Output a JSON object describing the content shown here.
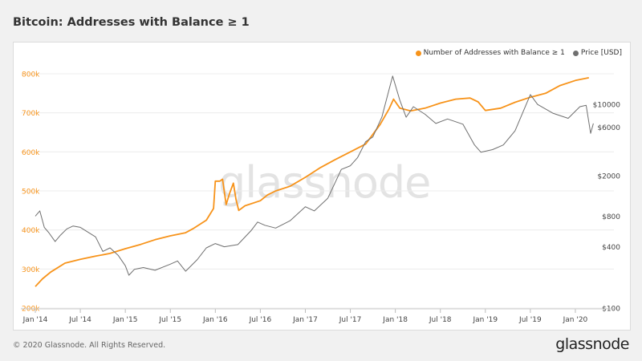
{
  "title": "Bitcoin: Addresses with Balance ≥ 1",
  "footer": "© 2020 Glassnode. All Rights Reserved.",
  "brand": "glassnode",
  "watermark": "glassnode",
  "chart_data": {
    "type": "line",
    "title": "Bitcoin: Addresses with Balance ≥ 1",
    "legend_position": "top-right",
    "grid": "horizontal",
    "x_ticks": [
      "Jan '14",
      "Jul '14",
      "Jan '15",
      "Jul '15",
      "Jan '16",
      "Jul '16",
      "Jan '17",
      "Jul '17",
      "Jan '18",
      "Jul '18",
      "Jan '19",
      "Jul '19",
      "Jan '20"
    ],
    "x_range": [
      2014.0,
      2020.25
    ],
    "y_left": {
      "ticks": [
        "200k",
        "300k",
        "400k",
        "500k",
        "600k",
        "700k",
        "800k"
      ],
      "range": [
        200000,
        800000
      ],
      "color": "#f7931a"
    },
    "y_right": {
      "scale": "log",
      "ticks": [
        "$100",
        "$400",
        "$800",
        "$2000",
        "$6000",
        "$10000"
      ],
      "range": [
        100,
        20000
      ],
      "color": "#555555"
    },
    "series": [
      {
        "name": "Number of Addresses with Balance ≥ 1",
        "color": "#f7931a",
        "axis": "left",
        "points": [
          [
            2014.0,
            255000
          ],
          [
            2014.08,
            275000
          ],
          [
            2014.17,
            292000
          ],
          [
            2014.33,
            315000
          ],
          [
            2014.5,
            325000
          ],
          [
            2014.67,
            333000
          ],
          [
            2014.83,
            340000
          ],
          [
            2015.0,
            352000
          ],
          [
            2015.17,
            363000
          ],
          [
            2015.33,
            375000
          ],
          [
            2015.5,
            385000
          ],
          [
            2015.67,
            393000
          ],
          [
            2015.75,
            403000
          ],
          [
            2015.9,
            425000
          ],
          [
            2015.98,
            455000
          ],
          [
            2016.0,
            525000
          ],
          [
            2016.05,
            525000
          ],
          [
            2016.08,
            530000
          ],
          [
            2016.12,
            465000
          ],
          [
            2016.16,
            495000
          ],
          [
            2016.2,
            520000
          ],
          [
            2016.23,
            478000
          ],
          [
            2016.26,
            450000
          ],
          [
            2016.33,
            462000
          ],
          [
            2016.5,
            475000
          ],
          [
            2016.58,
            490000
          ],
          [
            2016.67,
            500000
          ],
          [
            2016.83,
            512000
          ],
          [
            2017.0,
            535000
          ],
          [
            2017.17,
            560000
          ],
          [
            2017.33,
            580000
          ],
          [
            2017.5,
            600000
          ],
          [
            2017.67,
            620000
          ],
          [
            2017.83,
            670000
          ],
          [
            2017.93,
            710000
          ],
          [
            2017.98,
            735000
          ],
          [
            2018.05,
            712000
          ],
          [
            2018.17,
            705000
          ],
          [
            2018.33,
            712000
          ],
          [
            2018.5,
            725000
          ],
          [
            2018.67,
            735000
          ],
          [
            2018.83,
            738000
          ],
          [
            2018.92,
            728000
          ],
          [
            2019.0,
            706000
          ],
          [
            2019.17,
            712000
          ],
          [
            2019.33,
            727000
          ],
          [
            2019.5,
            740000
          ],
          [
            2019.67,
            750000
          ],
          [
            2019.83,
            770000
          ],
          [
            2020.0,
            783000
          ],
          [
            2020.15,
            790000
          ]
        ]
      },
      {
        "name": "Price [USD]",
        "color": "#6f6f6f",
        "axis": "right",
        "points": [
          [
            2014.0,
            800
          ],
          [
            2014.05,
            900
          ],
          [
            2014.1,
            620
          ],
          [
            2014.15,
            550
          ],
          [
            2014.22,
            450
          ],
          [
            2014.28,
            520
          ],
          [
            2014.35,
            600
          ],
          [
            2014.42,
            640
          ],
          [
            2014.5,
            620
          ],
          [
            2014.58,
            560
          ],
          [
            2014.67,
            500
          ],
          [
            2014.75,
            360
          ],
          [
            2014.83,
            390
          ],
          [
            2014.92,
            330
          ],
          [
            2015.0,
            260
          ],
          [
            2015.04,
            210
          ],
          [
            2015.1,
            240
          ],
          [
            2015.2,
            250
          ],
          [
            2015.33,
            235
          ],
          [
            2015.5,
            270
          ],
          [
            2015.58,
            290
          ],
          [
            2015.67,
            230
          ],
          [
            2015.8,
            300
          ],
          [
            2015.9,
            390
          ],
          [
            2016.0,
            430
          ],
          [
            2016.1,
            400
          ],
          [
            2016.25,
            420
          ],
          [
            2016.4,
            580
          ],
          [
            2016.47,
            700
          ],
          [
            2016.55,
            650
          ],
          [
            2016.67,
            610
          ],
          [
            2016.83,
            720
          ],
          [
            2017.0,
            990
          ],
          [
            2017.1,
            900
          ],
          [
            2017.25,
            1200
          ],
          [
            2017.4,
            2300
          ],
          [
            2017.5,
            2500
          ],
          [
            2017.58,
            3000
          ],
          [
            2017.67,
            4300
          ],
          [
            2017.75,
            4800
          ],
          [
            2017.85,
            7500
          ],
          [
            2017.93,
            14000
          ],
          [
            2017.97,
            19000
          ],
          [
            2018.05,
            11000
          ],
          [
            2018.12,
            7500
          ],
          [
            2018.2,
            9500
          ],
          [
            2018.33,
            8000
          ],
          [
            2018.45,
            6500
          ],
          [
            2018.58,
            7200
          ],
          [
            2018.75,
            6400
          ],
          [
            2018.88,
            4000
          ],
          [
            2018.95,
            3400
          ],
          [
            2019.08,
            3600
          ],
          [
            2019.2,
            4000
          ],
          [
            2019.33,
            5500
          ],
          [
            2019.42,
            8500
          ],
          [
            2019.5,
            12500
          ],
          [
            2019.58,
            10000
          ],
          [
            2019.75,
            8200
          ],
          [
            2019.92,
            7300
          ],
          [
            2020.05,
            9500
          ],
          [
            2020.12,
            9800
          ],
          [
            2020.17,
            5200
          ],
          [
            2020.2,
            6500
          ]
        ]
      }
    ]
  }
}
